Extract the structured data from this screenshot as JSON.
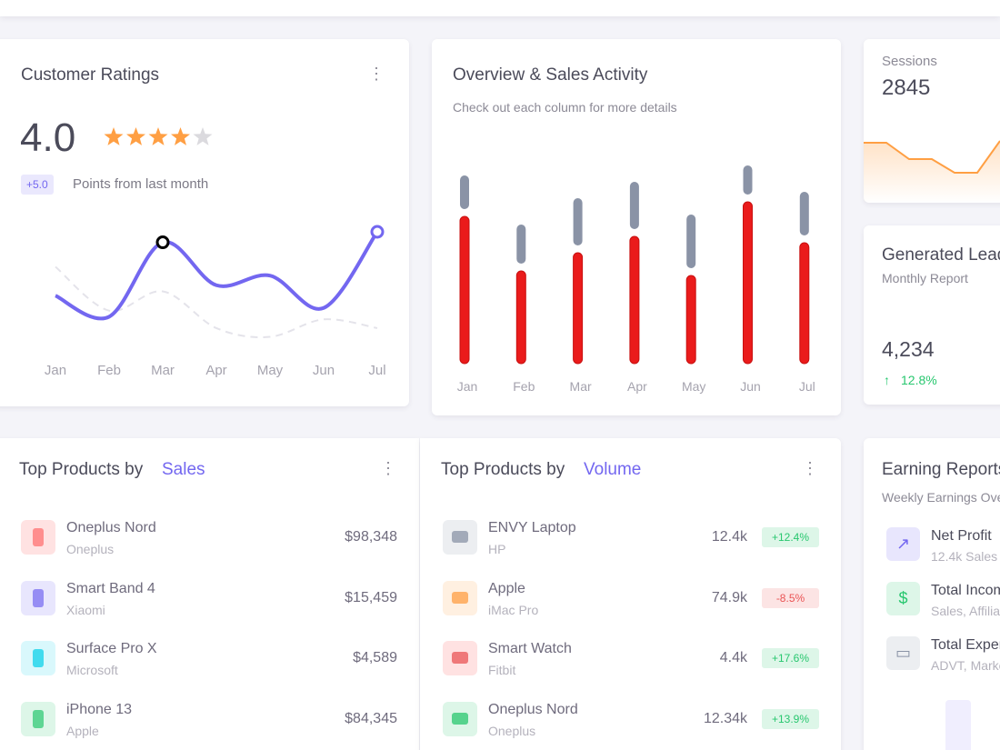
{
  "customer_ratings": {
    "title": "Customer Ratings",
    "rating": "4.0",
    "badge": "+5.0",
    "badge_text": "Points from last month",
    "chart": {
      "type": "line",
      "categories": [
        "Jan",
        "Feb",
        "Mar",
        "Apr",
        "May",
        "Jun",
        "Jul"
      ],
      "series": [
        {
          "color": "#7367f0",
          "values": [
            62,
            38,
            123,
            74,
            85,
            48,
            135
          ]
        },
        {
          "color": "#e4e3ea",
          "values": [
            95,
            45,
            67,
            25,
            15,
            35,
            25
          ]
        }
      ]
    }
  },
  "overview": {
    "title": "Overview & Sales Activity",
    "subtitle": "Check out each column for more details",
    "chart": {
      "type": "bar",
      "stacked": true,
      "categories": [
        "Jan",
        "Feb",
        "Mar",
        "Apr",
        "May",
        "Jun",
        "Jul"
      ],
      "series": [
        {
          "color": "#ea1b1b",
          "values": [
            162,
            102,
            122,
            140,
            97,
            178,
            133
          ]
        },
        {
          "color": "#8a93a6",
          "values": [
            37,
            43,
            52,
            52,
            59,
            32,
            48
          ]
        }
      ]
    }
  },
  "sessions": {
    "title": "Sessions",
    "value": "2845",
    "chart": {
      "type": "line",
      "color": "#ff9f43",
      "values": [
        43,
        43,
        25,
        25,
        10,
        10,
        45
      ]
    }
  },
  "leads": {
    "title": "Generated Leads",
    "subtitle": "Monthly Report",
    "value": "4,234",
    "change": "12.8%"
  },
  "sales": {
    "title": "Top Products by",
    "highlight": "Sales",
    "rows": [
      {
        "name": "Oneplus Nord",
        "brand": "Oneplus",
        "value": "$98,348"
      },
      {
        "name": "Smart Band 4",
        "brand": "Xiaomi",
        "value": "$15,459"
      },
      {
        "name": "Surface Pro X",
        "brand": "Microsoft",
        "value": "$4,589"
      },
      {
        "name": "iPhone 13",
        "brand": "Apple",
        "value": "$84,345"
      }
    ]
  },
  "volume": {
    "title": "Top Products by",
    "highlight": "Volume",
    "rows": [
      {
        "name": "ENVY Laptop",
        "brand": "HP",
        "value": "12.4k",
        "change": "+12.4%"
      },
      {
        "name": "Apple",
        "brand": "iMac Pro",
        "value": "74.9k",
        "change": "-8.5%"
      },
      {
        "name": "Smart Watch",
        "brand": "Fitbit",
        "value": "4.4k",
        "change": "+17.6%"
      },
      {
        "name": "Oneplus Nord",
        "brand": "Oneplus",
        "value": "12.34k",
        "change": "+13.9%"
      }
    ]
  },
  "earning": {
    "title": "Earning Reports",
    "subtitle": "Weekly Earnings Overview",
    "rows": [
      {
        "name": "Net Profit",
        "detail": "12.4k Sales"
      },
      {
        "name": "Total Income",
        "detail": "Sales, Affiliation"
      },
      {
        "name": "Total Expenses",
        "detail": "ADVT, Marketing"
      }
    ]
  }
}
